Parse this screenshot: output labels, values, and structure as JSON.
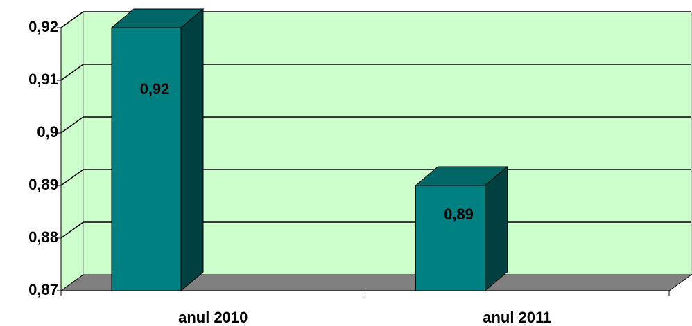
{
  "chart_data": {
    "type": "bar3d",
    "categories": [
      "anul 2010",
      "anul 2011"
    ],
    "values": [
      0.92,
      0.89
    ],
    "value_labels": [
      "0,92",
      "0,89"
    ],
    "color": "#008080",
    "ylim": [
      0.87,
      0.92
    ],
    "yticks": [
      {
        "value": 0.87,
        "label": "0,87"
      },
      {
        "value": 0.88,
        "label": "0,88"
      },
      {
        "value": 0.89,
        "label": "0,89"
      },
      {
        "value": 0.9,
        "label": "0,9"
      },
      {
        "value": 0.91,
        "label": "0,91"
      },
      {
        "value": 0.92,
        "label": "0,92"
      }
    ],
    "grid": true
  }
}
